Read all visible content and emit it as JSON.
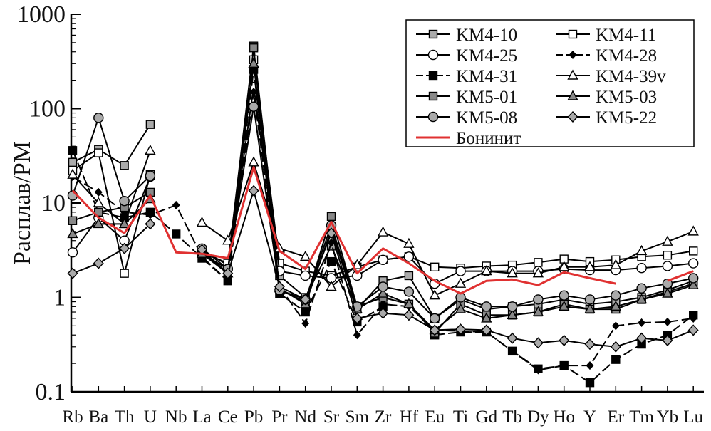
{
  "chart_data": {
    "type": "line",
    "title": "",
    "xlabel": "",
    "ylabel": "Расплав/PM",
    "yscale": "log",
    "ylim": [
      0.1,
      1000
    ],
    "yticks": [
      "0.1",
      "1",
      "10",
      "100",
      "1000"
    ],
    "grid": false,
    "legend_position": "top-right",
    "categories": [
      "Rb",
      "Ba",
      "Th",
      "U",
      "Nb",
      "La",
      "Ce",
      "Pb",
      "Pr",
      "Nd",
      "Sr",
      "Sm",
      "Zr",
      "Hf",
      "Eu",
      "Ti",
      "Gd",
      "Tb",
      "Dy",
      "Ho",
      "Y",
      "Er",
      "Tm",
      "Yb",
      "Lu"
    ],
    "series": [
      {
        "name": "KM4-10",
        "marker": "square",
        "fill": "#aaaaaa",
        "dash": "solid",
        "values": [
          27,
          37,
          25,
          68,
          null,
          3.2,
          2.2,
          460,
          1.7,
          1.0,
          3.5,
          0.75,
          1.5,
          1.7,
          0.6,
          0.95,
          0.75,
          0.8,
          0.85,
          0.95,
          0.85,
          0.9,
          1.0,
          1.2,
          1.5
        ]
      },
      {
        "name": "KM4-11",
        "marker": "square",
        "fill": "#ffffff",
        "dash": "solid",
        "values": [
          22,
          34,
          1.8,
          20,
          null,
          3.0,
          2.3,
          330,
          2.3,
          1.9,
          1.7,
          2.1,
          2.5,
          2.7,
          2.1,
          2.05,
          2.15,
          2.2,
          2.35,
          2.55,
          2.4,
          2.5,
          2.7,
          2.8,
          3.1
        ]
      },
      {
        "name": "KM4-25",
        "marker": "circle",
        "fill": "#ffffff",
        "dash": "solid",
        "values": [
          3.0,
          7.0,
          4.0,
          19,
          null,
          2.9,
          2.0,
          170,
          1.9,
          1.7,
          1.6,
          1.7,
          2.5,
          2.7,
          1.4,
          1.9,
          1.9,
          1.9,
          1.9,
          2.0,
          1.95,
          1.95,
          2.05,
          2.15,
          2.3
        ]
      },
      {
        "name": "KM4-28",
        "marker": "smalldiamond",
        "fill": "#000000",
        "dash": "dashed",
        "values": [
          19,
          13,
          8.0,
          7.5,
          9.5,
          2.7,
          1.5,
          150,
          1.3,
          0.53,
          3.8,
          0.4,
          0.85,
          0.8,
          0.45,
          0.44,
          0.43,
          0.27,
          0.17,
          0.19,
          0.19,
          0.5,
          0.54,
          0.55,
          0.6
        ]
      },
      {
        "name": "KM4-31",
        "marker": "square",
        "fill": "#000000",
        "dash": "dashed",
        "values": [
          36,
          8.0,
          7.0,
          8.0,
          4.7,
          2.6,
          1.5,
          260,
          1.1,
          0.7,
          2.4,
          0.55,
          0.8,
          null,
          0.4,
          0.43,
          0.43,
          0.27,
          0.175,
          0.19,
          0.125,
          0.22,
          0.32,
          0.4,
          0.65
        ]
      },
      {
        "name": "KM4-39v",
        "marker": "triangle",
        "fill": "#ffffff",
        "dash": "solid",
        "values": [
          20,
          10,
          6.0,
          36,
          null,
          6.2,
          4.0,
          27,
          3.3,
          2.7,
          1.3,
          2.2,
          4.9,
          3.7,
          1.05,
          1.4,
          1.9,
          1.8,
          1.8,
          2.1,
          2.1,
          2.2,
          3.1,
          3.9,
          5.0
        ]
      },
      {
        "name": "KM5-01",
        "marker": "square",
        "fill": "#888888",
        "dash": "solid",
        "values": [
          6.5,
          8.0,
          9.0,
          13,
          null,
          3.1,
          1.8,
          440,
          1.2,
          0.9,
          7.2,
          0.8,
          1.0,
          0.85,
          0.42,
          0.85,
          0.65,
          0.65,
          0.7,
          0.85,
          0.75,
          0.75,
          0.95,
          1.15,
          1.4
        ]
      },
      {
        "name": "KM5-03",
        "marker": "triangle",
        "fill": "#888888",
        "dash": "solid",
        "values": [
          4.7,
          6.0,
          6.0,
          11,
          null,
          2.9,
          1.8,
          300,
          1.25,
          0.85,
          5.2,
          0.75,
          1.1,
          0.85,
          0.45,
          0.75,
          0.6,
          0.65,
          0.7,
          0.8,
          0.75,
          0.8,
          0.95,
          1.1,
          1.35
        ]
      },
      {
        "name": "KM5-08",
        "marker": "circle",
        "fill": "#aaaaaa",
        "dash": "solid",
        "values": [
          12,
          80,
          10.5,
          19.5,
          null,
          3.3,
          2.0,
          105,
          1.2,
          0.95,
          5.8,
          0.8,
          1.3,
          1.15,
          0.6,
          1.0,
          0.8,
          0.8,
          0.95,
          1.05,
          0.95,
          1.05,
          1.25,
          1.4,
          1.6
        ]
      },
      {
        "name": "KM5-22",
        "marker": "diamond",
        "fill": "#aaaaaa",
        "dash": "solid",
        "values": [
          1.8,
          2.3,
          3.3,
          6.0,
          null,
          3.2,
          1.8,
          13.5,
          1.3,
          0.95,
          4.8,
          0.6,
          0.68,
          0.65,
          0.45,
          0.46,
          0.45,
          0.37,
          0.33,
          0.35,
          0.32,
          0.3,
          0.37,
          0.35,
          0.45
        ]
      },
      {
        "name": "Бонинит",
        "marker": "none",
        "color": "#e03131",
        "dash": "solid",
        "values": [
          13.5,
          7.0,
          4.8,
          12,
          3.0,
          2.9,
          2.6,
          24,
          3.1,
          2.0,
          6.3,
          1.8,
          3.3,
          2.3,
          1.5,
          1.1,
          1.5,
          1.55,
          1.35,
          1.85,
          1.6,
          1.4,
          null,
          1.5,
          1.9
        ]
      }
    ]
  }
}
